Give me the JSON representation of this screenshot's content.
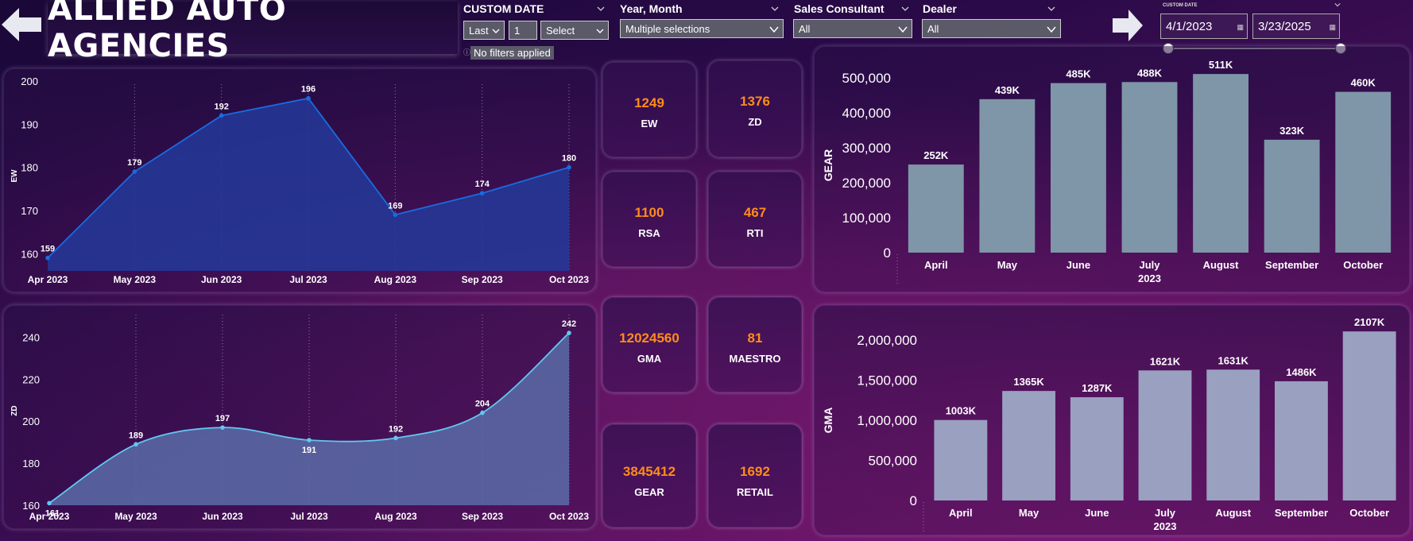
{
  "header": {
    "title": "ALLIED AUTO AGENCIES"
  },
  "slicers": {
    "custom_date": {
      "label": "CUSTOM DATE",
      "mode": "Last",
      "count": "1",
      "unit": "Select",
      "status": "No filters applied"
    },
    "year_month": {
      "label": "Year, Month",
      "value": "Multiple selections"
    },
    "sales_consultant": {
      "label": "Sales Consultant",
      "value": "All"
    },
    "dealer": {
      "label": "Dealer",
      "value": "All"
    },
    "date_range": {
      "label": "CUSTOM DATE",
      "start": "4/1/2023",
      "end": "3/23/2025"
    }
  },
  "cards": [
    {
      "value": "1249",
      "label": "EW"
    },
    {
      "value": "1376",
      "label": "ZD"
    },
    {
      "value": "1100",
      "label": "RSA"
    },
    {
      "value": "467",
      "label": "RTI"
    },
    {
      "value": "12024560",
      "label": "GMA"
    },
    {
      "value": "81",
      "label": "MAESTRO"
    },
    {
      "value": "3845412",
      "label": "GEAR"
    },
    {
      "value": "1692",
      "label": "RETAIL"
    }
  ],
  "colors": {
    "ew_line": "#1a6be0",
    "ew_fill": "#233a9a",
    "zd_line": "#5fc8f0",
    "zd_fill": "#5a6ca8",
    "bar_gear": "#7f96a8",
    "bar_gma": "#9aa0c0",
    "kpi_value": "#ff8c1a"
  },
  "chart_data": [
    {
      "type": "area",
      "ylabel": "EW",
      "categories": [
        "Apr 2023",
        "May 2023",
        "Jun 2023",
        "Jul 2023",
        "Aug 2023",
        "Sep 2023",
        "Oct 2023"
      ],
      "values": [
        159,
        179,
        192,
        196,
        169,
        174,
        180
      ],
      "data_labels": [
        "159",
        "179",
        "192",
        "196",
        "169",
        "174",
        "180"
      ],
      "yticks": [
        "160",
        "170",
        "180",
        "190",
        "200"
      ],
      "ylim": [
        156,
        200
      ]
    },
    {
      "type": "area",
      "ylabel": "ZD",
      "smooth": true,
      "categories": [
        "Apr 2023",
        "May 2023",
        "Jun 2023",
        "Jul 2023",
        "Aug 2023",
        "Sep 2023",
        "Oct 2023"
      ],
      "values": [
        161,
        189,
        197,
        191,
        192,
        204,
        242
      ],
      "data_labels": [
        "161",
        "189",
        "197",
        "191",
        "192",
        "204",
        "242"
      ],
      "yticks": [
        "160",
        "180",
        "200",
        "220",
        "240"
      ],
      "ylim": [
        160,
        250
      ]
    },
    {
      "type": "bar",
      "ylabel": "GEAR",
      "categories": [
        "April",
        "May",
        "June",
        "July",
        "August",
        "September",
        "October"
      ],
      "xlabel_sub": "2023",
      "values": [
        252000,
        439000,
        485000,
        488000,
        511000,
        323000,
        460000
      ],
      "data_labels": [
        "252K",
        "439K",
        "485K",
        "488K",
        "511K",
        "323K",
        "460K"
      ],
      "yticks": [
        "0",
        "100,000",
        "200,000",
        "300,000",
        "400,000",
        "500,000"
      ],
      "ylim": [
        0,
        500000
      ]
    },
    {
      "type": "bar",
      "ylabel": "GMA",
      "categories": [
        "April",
        "May",
        "June",
        "July",
        "August",
        "September",
        "October"
      ],
      "xlabel_sub": "2023",
      "values": [
        1003000,
        1365000,
        1287000,
        1621000,
        1631000,
        1486000,
        2107000
      ],
      "data_labels": [
        "1003K",
        "1365K",
        "1287K",
        "1621K",
        "1631K",
        "1486K",
        "2107K"
      ],
      "yticks": [
        "0",
        "500,000",
        "1,000,000",
        "1,500,000",
        "2,000,000"
      ],
      "ylim": [
        0,
        2000000
      ]
    }
  ]
}
